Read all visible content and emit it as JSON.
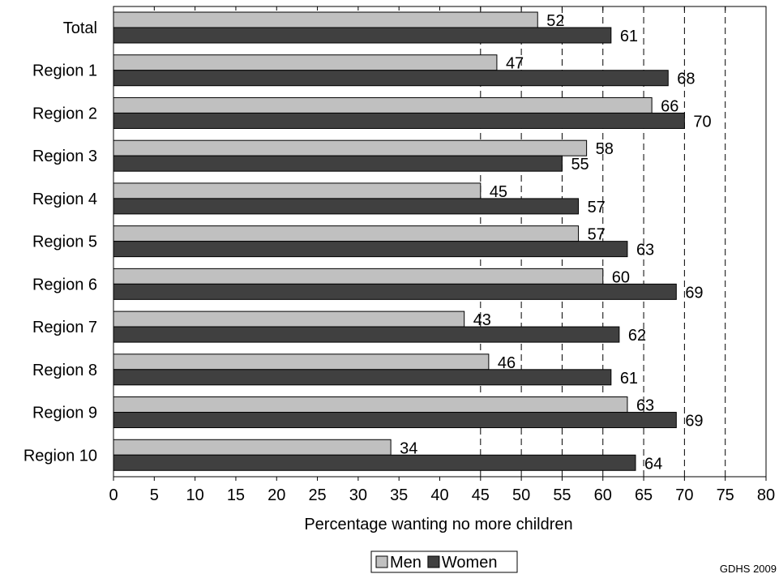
{
  "chart_data": {
    "type": "bar",
    "orientation": "horizontal",
    "categories": [
      "Total",
      "Region 1",
      "Region 2",
      "Region 3",
      "Region 4",
      "Region 5",
      "Region 6",
      "Region 7",
      "Region 8",
      "Region 9",
      "Region 10"
    ],
    "series": [
      {
        "name": "Men",
        "color": "#c0c0c0",
        "values": [
          52,
          47,
          66,
          58,
          45,
          57,
          60,
          43,
          46,
          63,
          34
        ]
      },
      {
        "name": "Women",
        "color": "#404040",
        "values": [
          61,
          68,
          70,
          55,
          57,
          63,
          69,
          62,
          61,
          69,
          64
        ]
      }
    ],
    "xlabel": "Percentage wanting no more children",
    "xlim": [
      0,
      80
    ],
    "xticks": [
      "0",
      "5",
      "10",
      "15",
      "20",
      "25",
      "30",
      "35",
      "40",
      "45",
      "50",
      "55",
      "60",
      "65",
      "70",
      "75",
      "80"
    ],
    "grid": "vertical dashed lines from 45 to 75",
    "gridlines_at": [
      45,
      50,
      55,
      60,
      65,
      70,
      75
    ],
    "legend_position": "bottom-center"
  },
  "source_note": "GDHS 2009"
}
